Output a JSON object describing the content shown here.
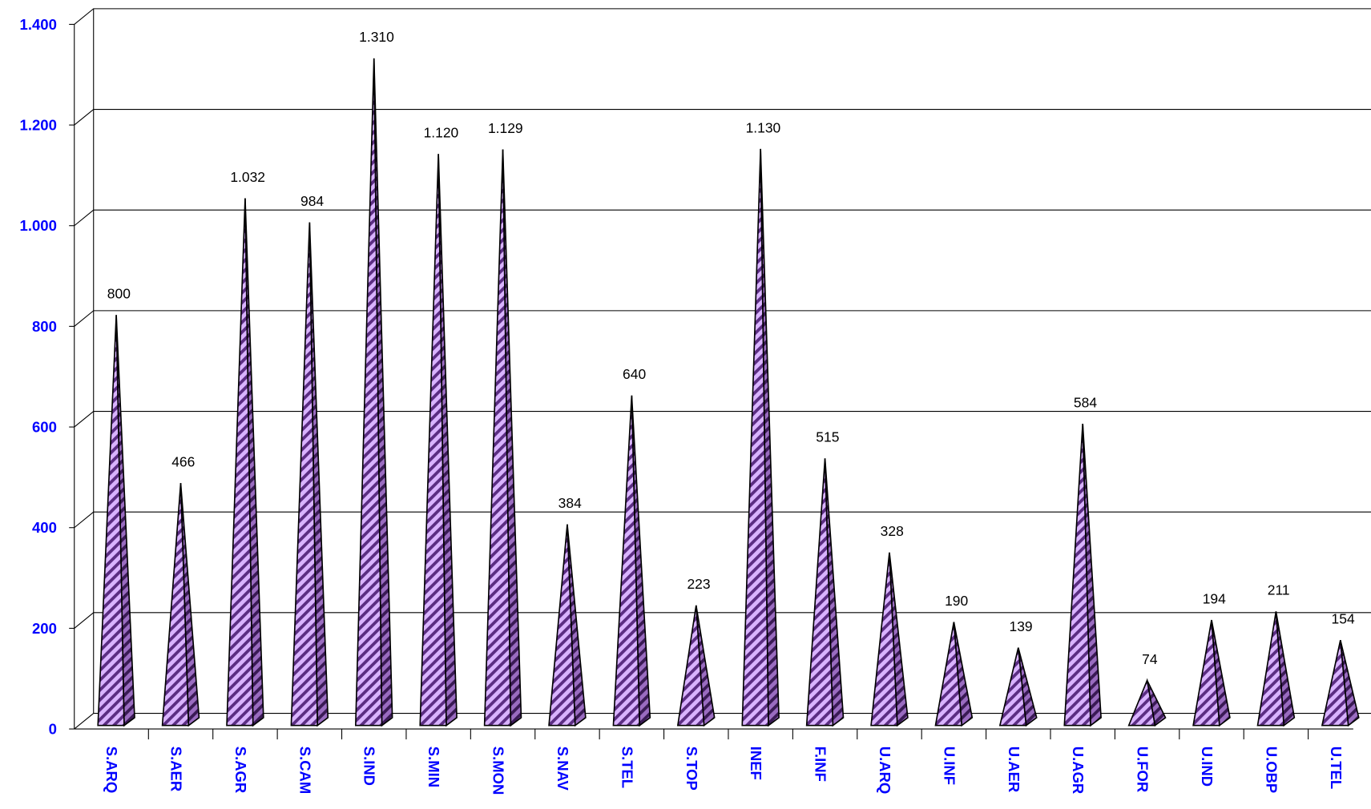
{
  "chart_data": {
    "type": "pyramid",
    "categories": [
      "S.ARQ",
      "S.AER",
      "S.AGR",
      "S.CAM",
      "S.IND",
      "S.MIN",
      "S.MON",
      "S.NAV",
      "S.TEL",
      "S.TOP",
      "INEF",
      "F.INF",
      "U.ARQ",
      "U.INF",
      "U.AER",
      "U.AGR",
      "U.FOR",
      "U.IND",
      "U.OBP",
      "U.TEL"
    ],
    "values": [
      800,
      466,
      1032,
      984,
      1310,
      1120,
      1129,
      384,
      640,
      223,
      1130,
      515,
      328,
      190,
      139,
      584,
      74,
      194,
      211,
      154
    ],
    "value_labels": [
      "800",
      "466",
      "1.032",
      "984",
      "1.310",
      "1.120",
      "1.129",
      "384",
      "640",
      "223",
      "1.130",
      "515",
      "328",
      "190",
      "139",
      "584",
      "74",
      "194",
      "211",
      "154"
    ],
    "color": "#c8a0f0",
    "ylim": [
      0,
      1400
    ],
    "yticks": [
      0,
      200,
      400,
      600,
      800,
      {
        "value": 1000,
        "label": "1.000"
      },
      {
        "value": 1200,
        "label": "1.200"
      },
      {
        "value": 1400,
        "label": "1.400"
      }
    ],
    "grid": true
  }
}
